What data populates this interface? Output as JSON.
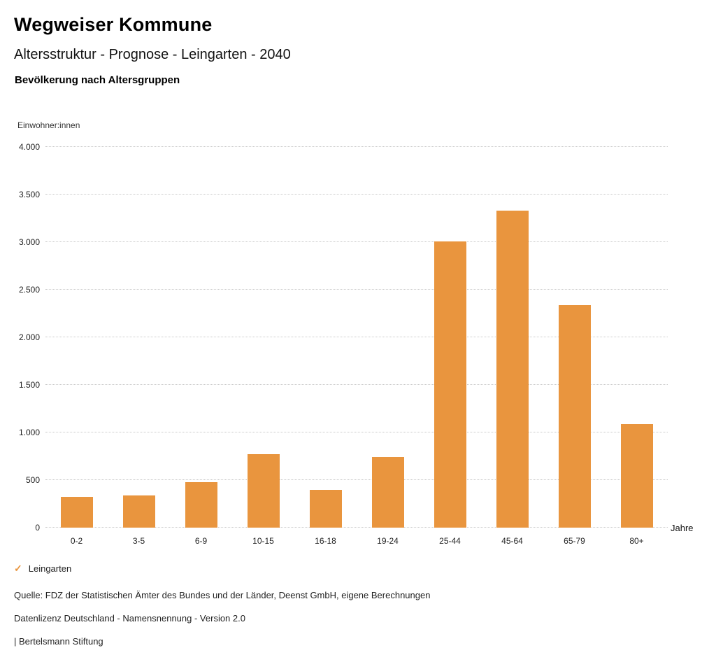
{
  "header": {
    "title": "Wegweiser Kommune",
    "subtitle": "Altersstruktur - Prognose - Leingarten - 2040",
    "chart_title": "Bevölkerung nach Altersgruppen"
  },
  "chart_data": {
    "type": "bar",
    "title": "Bevölkerung nach Altersgruppen",
    "ylabel": "Einwohner:innen",
    "xlabel": "Jahre",
    "categories": [
      "0-2",
      "3-5",
      "6-9",
      "10-15",
      "16-18",
      "19-24",
      "25-44",
      "45-64",
      "65-79",
      "80+"
    ],
    "series": [
      {
        "name": "Leingarten",
        "values": [
          320,
          340,
          480,
          770,
          400,
          745,
          3010,
          3330,
          2340,
          1090
        ]
      }
    ],
    "ylim": [
      0,
      4000
    ],
    "ytick_step": 500,
    "ytick_labels": [
      "0",
      "500",
      "1.000",
      "1.500",
      "2.000",
      "2.500",
      "3.000",
      "3.500",
      "4.000"
    ],
    "grid": true,
    "legend_position": "bottom-left",
    "bar_color": "#E9953E"
  },
  "legend": {
    "items": [
      {
        "label": "Leingarten",
        "color": "#E9953E",
        "check_icon": "✓"
      }
    ]
  },
  "footer": {
    "lines": [
      "Quelle: FDZ der Statistischen Ämter des Bundes und der Länder, Deenst GmbH, eigene Berechnungen",
      "Datenlizenz Deutschland - Namensnennung - Version 2.0",
      "| Bertelsmann Stiftung"
    ]
  }
}
